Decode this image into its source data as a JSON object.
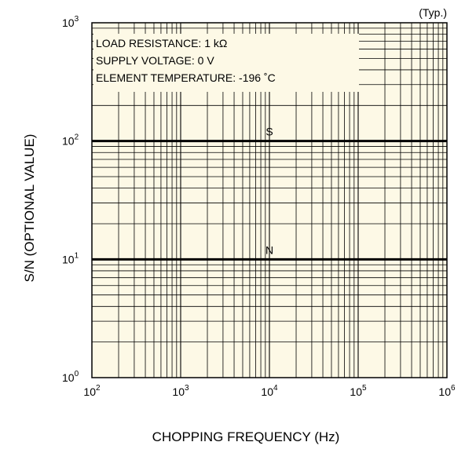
{
  "chart_data": {
    "type": "line",
    "xscale": "log",
    "yscale": "log",
    "xlim": [
      100,
      1000000
    ],
    "ylim": [
      1,
      1000
    ],
    "x_ticks": [
      {
        "base": "10",
        "exp": "2"
      },
      {
        "base": "10",
        "exp": "3"
      },
      {
        "base": "10",
        "exp": "4"
      },
      {
        "base": "10",
        "exp": "5"
      },
      {
        "base": "10",
        "exp": "6"
      }
    ],
    "y_ticks": [
      {
        "base": "10",
        "exp": "0"
      },
      {
        "base": "10",
        "exp": "1"
      },
      {
        "base": "10",
        "exp": "2"
      },
      {
        "base": "10",
        "exp": "3"
      }
    ],
    "xlabel": "CHOPPING FREQUENCY (Hz)",
    "ylabel": "S/N (OPTIONAL VALUE)",
    "corner_note": "(Typ.)",
    "conditions": [
      "LOAD RESISTANCE: 1 kΩ",
      "SUPPLY VOLTAGE: 0 V",
      "ELEMENT TEMPERATURE: -196 ˚C"
    ],
    "grid": true,
    "background_color": "#fdf9e6",
    "series": [
      {
        "name": "S",
        "x": [
          100,
          1000000
        ],
        "y": [
          100,
          100
        ],
        "label_x": 10000
      },
      {
        "name": "N",
        "x": [
          100,
          1000000
        ],
        "y": [
          10,
          10
        ],
        "label_x": 10000
      }
    ]
  }
}
